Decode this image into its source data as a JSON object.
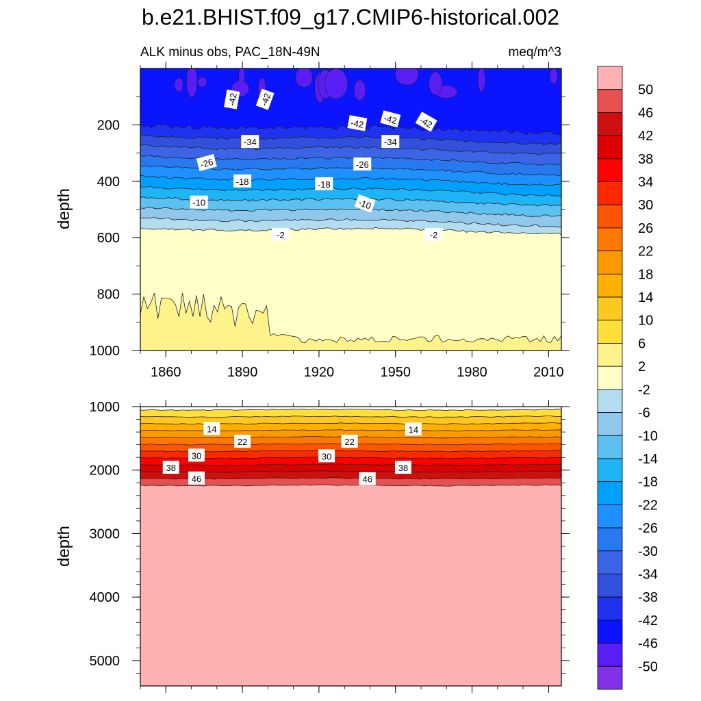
{
  "chart_data": {
    "type": "contour",
    "title": "b.e21.BHIST.f09_g17.CMIP6-historical.002",
    "subtitle_left": "ALK minus obs, PAC_18N-49N",
    "subtitle_right": "meq/m^3",
    "colorbar": {
      "levels": [
        "50",
        "46",
        "42",
        "38",
        "34",
        "30",
        "26",
        "22",
        "18",
        "14",
        "10",
        "6",
        "2",
        "-2",
        "-6",
        "-10",
        "-14",
        "-18",
        "-22",
        "-26",
        "-30",
        "-34",
        "-38",
        "-42",
        "-46",
        "-50"
      ],
      "colors": [
        "#FFB2B2",
        "#E65050",
        "#CC1010",
        "#DD0000",
        "#FF0000",
        "#FF2800",
        "#FF5500",
        "#FF7800",
        "#FF9900",
        "#FFB000",
        "#FFC820",
        "#FFDF3A",
        "#FFF38C",
        "#FFFFC8",
        "#B4DCF0",
        "#90C8EC",
        "#5CC0F0",
        "#1EB4F5",
        "#00A0FF",
        "#1E90FF",
        "#2878F0",
        "#3C64E6",
        "#3250DC",
        "#1E32F0",
        "#0A14FF",
        "#5A1EF5",
        "#8232E6"
      ]
    },
    "panels": [
      {
        "name": "upper",
        "xlabel": "",
        "ylabel": "depth",
        "xlim": [
          1850,
          2015
        ],
        "ylim": [
          1000,
          0
        ],
        "xticks": [
          "1860",
          "1890",
          "1920",
          "1950",
          "1980",
          "2010"
        ],
        "yticks": [
          "200",
          "400",
          "600",
          "800",
          "1000"
        ],
        "contour_labels": [
          {
            "text": "-42",
            "x": 1886,
            "y": 110,
            "angle": -80
          },
          {
            "text": "-42",
            "x": 1899,
            "y": 110,
            "angle": -70
          },
          {
            "text": "-42",
            "x": 1935,
            "y": 195,
            "angle": 10
          },
          {
            "text": "-42",
            "x": 1948,
            "y": 180,
            "angle": 15
          },
          {
            "text": "-42",
            "x": 1962,
            "y": 190,
            "angle": 30
          },
          {
            "text": "-34",
            "x": 1893,
            "y": 260,
            "angle": 0
          },
          {
            "text": "-34",
            "x": 1948,
            "y": 260,
            "angle": 0
          },
          {
            "text": "-26",
            "x": 1876,
            "y": 335,
            "angle": -15
          },
          {
            "text": "-26",
            "x": 1937,
            "y": 340,
            "angle": 0
          },
          {
            "text": "-18",
            "x": 1890,
            "y": 400,
            "angle": 0
          },
          {
            "text": "-18",
            "x": 1922,
            "y": 410,
            "angle": 0
          },
          {
            "text": "-10",
            "x": 1873,
            "y": 475,
            "angle": 0
          },
          {
            "text": "-10",
            "x": 1938,
            "y": 480,
            "angle": 20
          },
          {
            "text": "-2",
            "x": 1905,
            "y": 590,
            "angle": 0
          },
          {
            "text": "-2",
            "x": 1965,
            "y": 590,
            "angle": 0
          }
        ]
      },
      {
        "name": "lower",
        "xlabel": "",
        "ylabel": "depth",
        "xlim": [
          1850,
          2015
        ],
        "ylim": [
          5400,
          1000
        ],
        "yticks": [
          "1000",
          "2000",
          "3000",
          "4000",
          "5000"
        ],
        "contour_labels": [
          {
            "text": "14",
            "x": 1878,
            "y": 1350,
            "angle": 0
          },
          {
            "text": "14",
            "x": 1957,
            "y": 1360,
            "angle": 0
          },
          {
            "text": "22",
            "x": 1890,
            "y": 1550,
            "angle": 0
          },
          {
            "text": "22",
            "x": 1932,
            "y": 1550,
            "angle": 0
          },
          {
            "text": "30",
            "x": 1872,
            "y": 1770,
            "angle": 0
          },
          {
            "text": "30",
            "x": 1923,
            "y": 1780,
            "angle": 0
          },
          {
            "text": "38",
            "x": 1862,
            "y": 1960,
            "angle": 0
          },
          {
            "text": "38",
            "x": 1953,
            "y": 1960,
            "angle": 0
          },
          {
            "text": "46",
            "x": 1872,
            "y": 2130,
            "angle": 0
          },
          {
            "text": "46",
            "x": 1939,
            "y": 2140,
            "angle": 0
          }
        ]
      }
    ]
  }
}
